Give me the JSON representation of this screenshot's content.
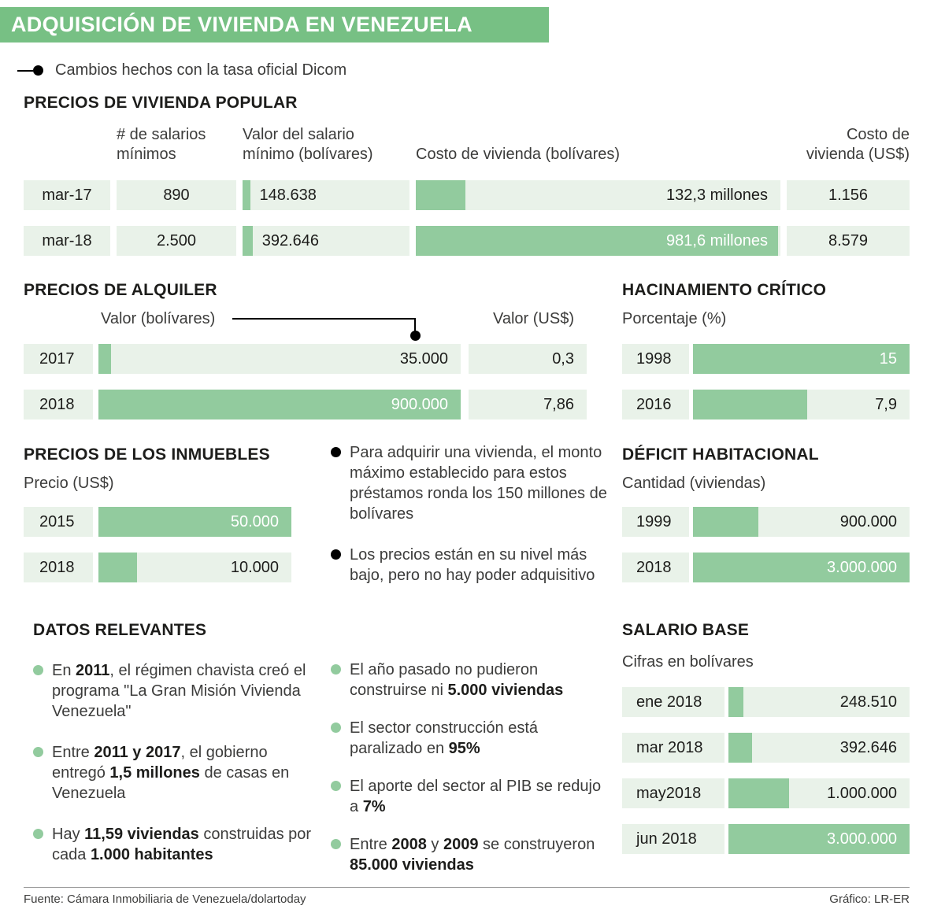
{
  "colors": {
    "banner_green": "#77c084",
    "bar_fill": "#92cb9e",
    "bar_bg": "#e9f2e9",
    "text_dark": "#1d1d1b",
    "text_body": "#3c3c3b",
    "bar_value_white": "#ffffff"
  },
  "banner": {
    "title": "ADQUISICIÓN DE VIVIENDA EN VENEZUELA"
  },
  "legend": {
    "dicom": "Cambios hechos con la tasa oficial Dicom"
  },
  "vivienda_popular": {
    "title": "PRECIOS DE VIVIENDA POPULAR",
    "headers": {
      "salarios": "# de salarios mínimos",
      "valor_salario": "Valor del salario mínimo (bolívares)",
      "costo_bs": "Costo de vivienda (bolívares)",
      "costo_usd": "Costo de vivienda (US$)"
    },
    "rows": [
      {
        "label": "mar-17",
        "salarios": "890",
        "valor_salario": "148.638",
        "valor_fill": 4.5,
        "costo_bs": "132,3 millones",
        "costo_fill": 13.5,
        "costo_usd": "1.156"
      },
      {
        "label": "mar-18",
        "salarios": "2.500",
        "valor_salario": "392.646",
        "valor_fill": 6,
        "costo_bs": "981,6 millones",
        "costo_fill": 99.3,
        "costo_usd": "8.579"
      }
    ]
  },
  "alquiler": {
    "title": "PRECIOS DE ALQUILER",
    "header_bs": "Valor (bolívares)",
    "header_usd": "Valor (US$)",
    "rows": [
      {
        "label": "2017",
        "value": "35.000",
        "fill": 3.5,
        "usd": "0,3"
      },
      {
        "label": "2018",
        "value": "900.000",
        "fill": 100,
        "usd": "7,86"
      }
    ]
  },
  "hacinamiento": {
    "title": "HACINAMIENTO CRÍTICO",
    "header": "Porcentaje (%)",
    "rows": [
      {
        "label": "1998",
        "value": "15",
        "fill": 100
      },
      {
        "label": "2016",
        "value": "7,9",
        "fill": 52.7
      }
    ]
  },
  "inmuebles": {
    "title": "PRECIOS DE LOS INMUEBLES",
    "header": "Precio (US$)",
    "rows": [
      {
        "label": "2015",
        "value": "50.000",
        "fill": 100
      },
      {
        "label": "2018",
        "value": "10.000",
        "fill": 20
      }
    ]
  },
  "deficit": {
    "title": "DÉFICIT HABITACIONAL",
    "header": "Cantidad (viviendas)",
    "rows": [
      {
        "label": "1999",
        "value": "900.000",
        "fill": 30
      },
      {
        "label": "2018",
        "value": "3.000.000",
        "fill": 100
      }
    ]
  },
  "salario_base": {
    "title": "SALARIO BASE",
    "header": "Cifras en bolívares",
    "rows": [
      {
        "label": "ene 2018",
        "value": "248.510",
        "fill": 8.3
      },
      {
        "label": "mar 2018",
        "value": "392.646",
        "fill": 13.1
      },
      {
        "label": "may2018",
        "value": "1.000.000",
        "fill": 33.3
      },
      {
        "label": "jun 2018",
        "value": "3.000.000",
        "fill": 100
      }
    ]
  },
  "notas_top": [
    {
      "segments": [
        {
          "t": "Para adquirir una vivienda, el monto máximo establecido para estos préstamos ronda los 150 millones de bolívares",
          "b": false
        }
      ]
    },
    {
      "segments": [
        {
          "t": "Los precios están en su nivel más bajo, pero no hay poder adquisitivo",
          "b": false
        }
      ]
    }
  ],
  "datos_relevantes": {
    "title": "DATOS RELEVANTES",
    "items": [
      {
        "segments": [
          {
            "t": "En ",
            "b": false
          },
          {
            "t": "2011",
            "b": true
          },
          {
            "t": ", el régimen chavista creó el programa \"La Gran Misión Vivienda Venezuela\"",
            "b": false
          }
        ]
      },
      {
        "segments": [
          {
            "t": "Entre ",
            "b": false
          },
          {
            "t": "2011 y 2017",
            "b": true
          },
          {
            "t": ", el gobierno entregó ",
            "b": false
          },
          {
            "t": "1,5 millones",
            "b": true
          },
          {
            "t": " de casas en Venezuela",
            "b": false
          }
        ]
      },
      {
        "segments": [
          {
            "t": "Hay ",
            "b": false
          },
          {
            "t": "11,59 viviendas",
            "b": true
          },
          {
            "t": " construidas por cada ",
            "b": false
          },
          {
            "t": "1.000 habitantes",
            "b": true
          }
        ]
      }
    ]
  },
  "notas_bottom": [
    {
      "segments": [
        {
          "t": "El año pasado no pudieron construirse ni ",
          "b": false
        },
        {
          "t": "5.000 viviendas",
          "b": true
        }
      ]
    },
    {
      "segments": [
        {
          "t": "El sector construcción está paralizado en ",
          "b": false
        },
        {
          "t": "95%",
          "b": true
        }
      ]
    },
    {
      "segments": [
        {
          "t": "El aporte del sector al PIB se redujo a ",
          "b": false
        },
        {
          "t": "7%",
          "b": true
        }
      ]
    },
    {
      "segments": [
        {
          "t": "Entre ",
          "b": false
        },
        {
          "t": "2008",
          "b": true
        },
        {
          "t": " y ",
          "b": false
        },
        {
          "t": "2009",
          "b": true
        },
        {
          "t": " se construyeron ",
          "b": false
        },
        {
          "t": "85.000 viviendas",
          "b": true
        }
      ]
    }
  ],
  "footer": {
    "source": "Fuente: Cámara Inmobiliaria de Venezuela/dolartoday",
    "credit": "Gráfico: LR-ER"
  },
  "chart_data": [
    {
      "type": "bar",
      "title": "PRECIOS DE VIVIENDA POPULAR",
      "orientation": "horizontal",
      "categories": [
        "mar-17",
        "mar-18"
      ],
      "series": [
        {
          "name": "# de salarios mínimos",
          "values": [
            890,
            2500
          ]
        },
        {
          "name": "Valor del salario mínimo (bolívares)",
          "values": [
            148638,
            392646
          ]
        },
        {
          "name": "Costo de vivienda (bolívares)",
          "values": [
            132300000,
            981600000
          ],
          "labels": [
            "132,3 millones",
            "981,6 millones"
          ]
        },
        {
          "name": "Costo de vivienda (US$)",
          "values": [
            1156,
            8579
          ]
        }
      ]
    },
    {
      "type": "bar",
      "title": "PRECIOS DE ALQUILER",
      "orientation": "horizontal",
      "categories": [
        "2017",
        "2018"
      ],
      "series": [
        {
          "name": "Valor (bolívares)",
          "values": [
            35000,
            900000
          ]
        },
        {
          "name": "Valor (US$)",
          "values": [
            0.3,
            7.86
          ]
        }
      ],
      "max": 900000,
      "annotation": "Cambios hechos con la tasa oficial Dicom"
    },
    {
      "type": "bar",
      "title": "HACINAMIENTO CRÍTICO",
      "orientation": "horizontal",
      "xlabel": "Porcentaje (%)",
      "categories": [
        "1998",
        "2016"
      ],
      "values": [
        15,
        7.9
      ],
      "max": 15
    },
    {
      "type": "bar",
      "title": "PRECIOS DE LOS INMUEBLES",
      "orientation": "horizontal",
      "xlabel": "Precio (US$)",
      "categories": [
        "2015",
        "2018"
      ],
      "values": [
        50000,
        10000
      ],
      "max": 50000
    },
    {
      "type": "bar",
      "title": "DÉFICIT HABITACIONAL",
      "orientation": "horizontal",
      "xlabel": "Cantidad (viviendas)",
      "categories": [
        "1999",
        "2018"
      ],
      "values": [
        900000,
        3000000
      ],
      "max": 3000000
    },
    {
      "type": "bar",
      "title": "SALARIO BASE",
      "orientation": "horizontal",
      "xlabel": "Cifras en bolívares",
      "categories": [
        "ene 2018",
        "mar 2018",
        "may2018",
        "jun 2018"
      ],
      "values": [
        248510,
        392646,
        1000000,
        3000000
      ],
      "max": 3000000
    }
  ]
}
